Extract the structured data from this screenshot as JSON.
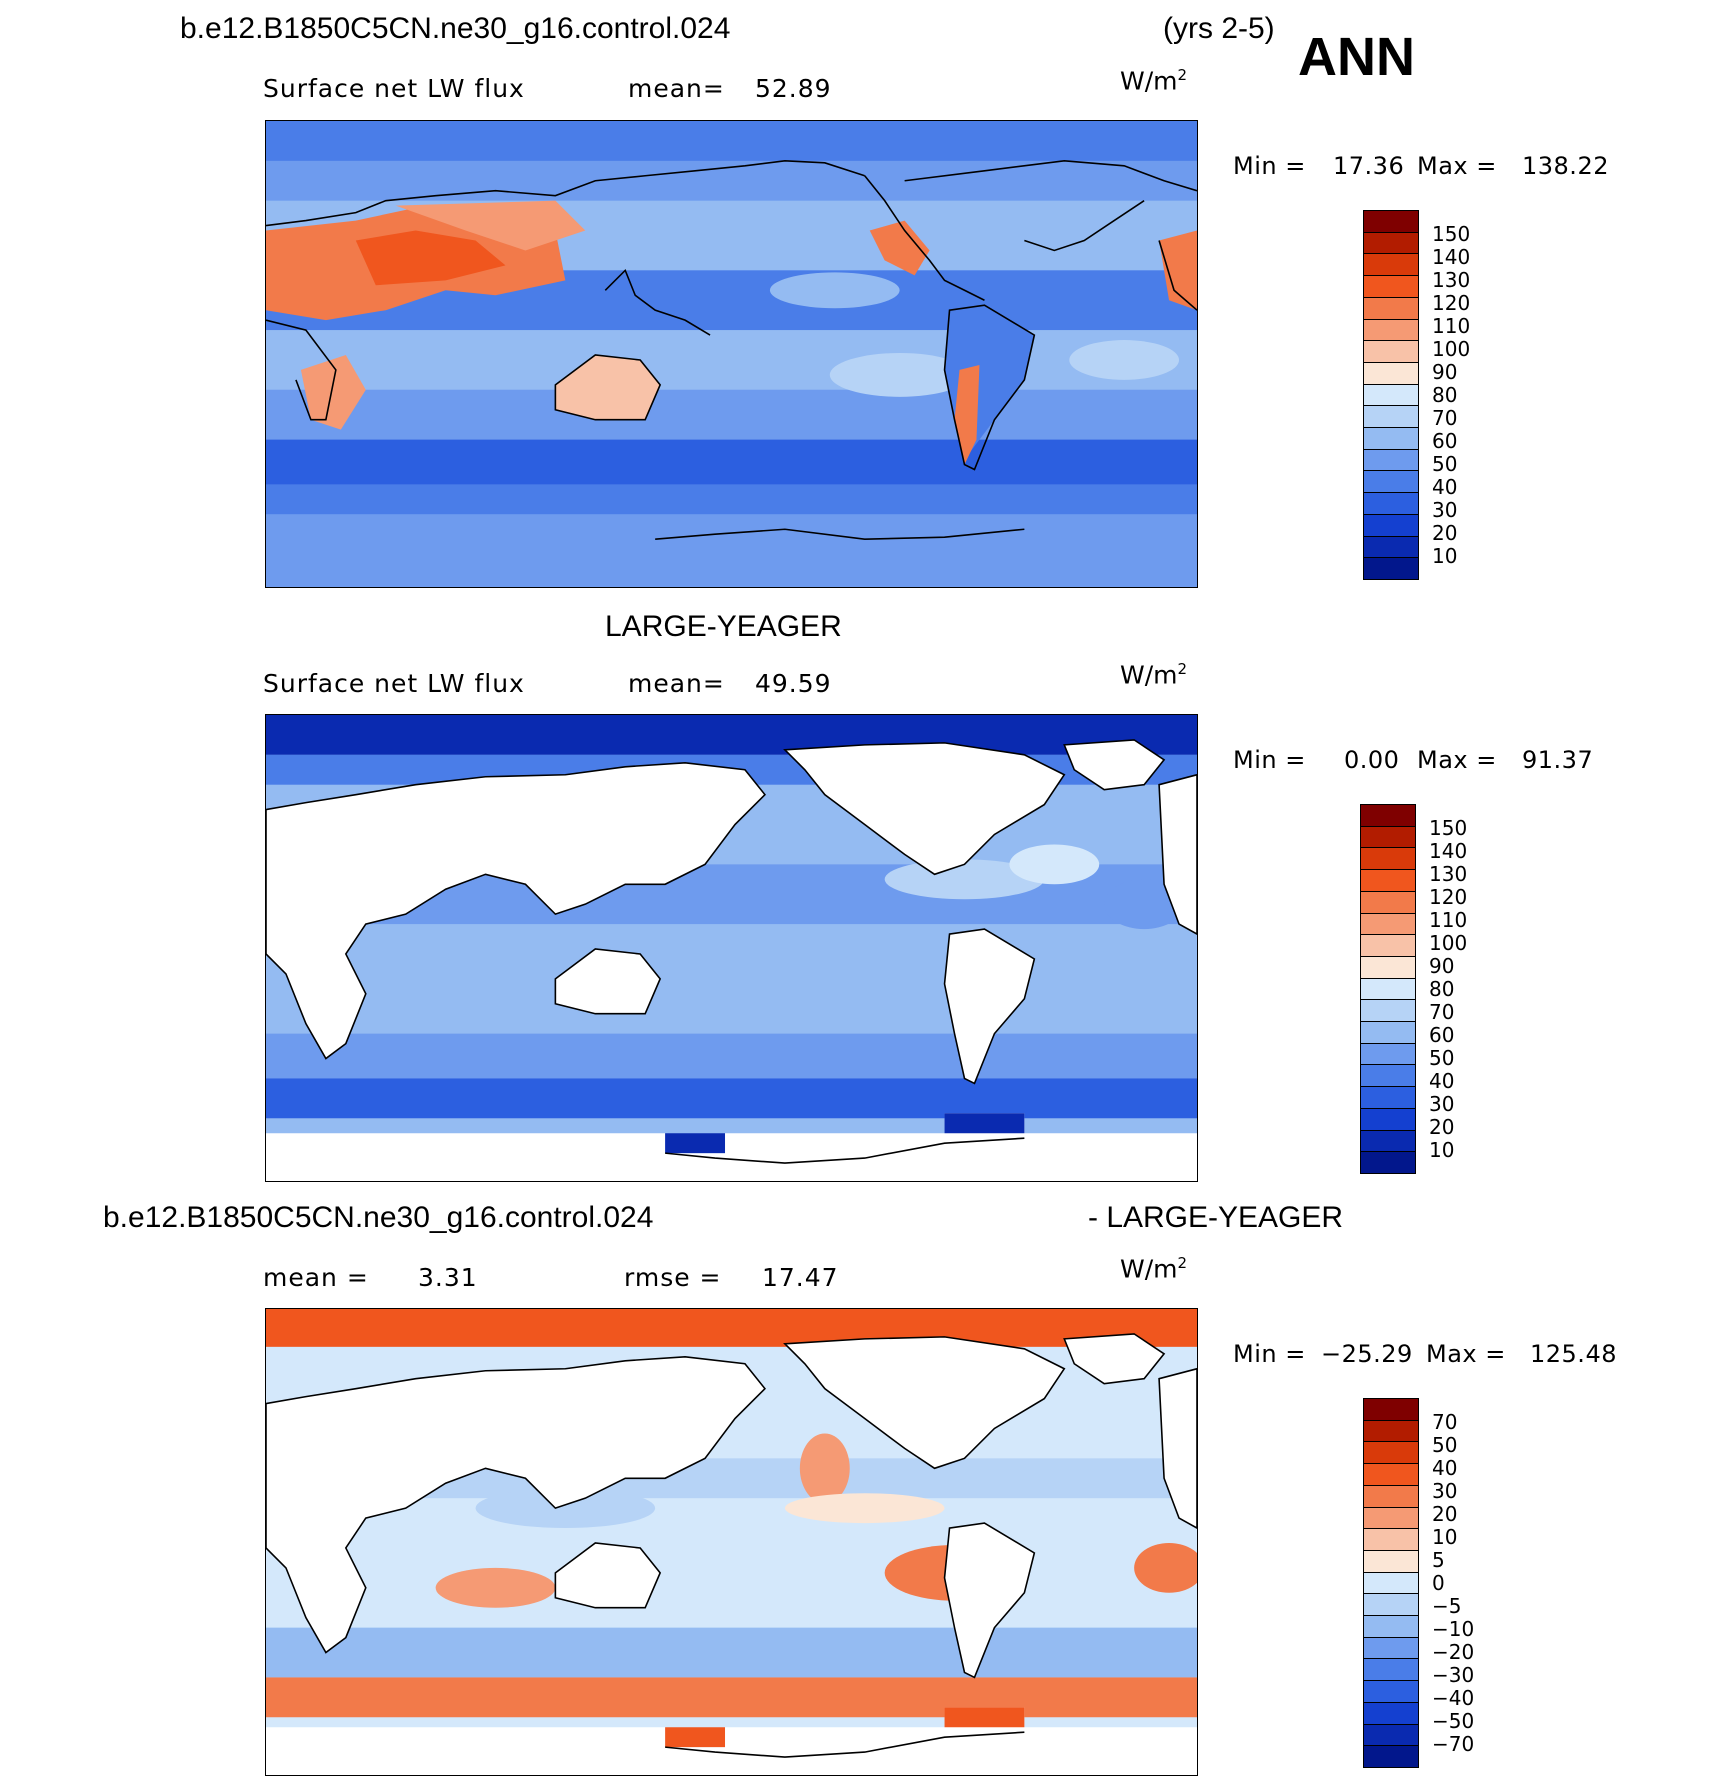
{
  "header": {
    "case_title": "b.e12.B1850C5CN.ne30_g16.control.024",
    "years": "(yrs 2-5)",
    "season": "ANN"
  },
  "panels": [
    {
      "id": "case",
      "variable": "Surface net LW flux",
      "stat_label": "mean=",
      "stat_value": "52.89",
      "units": "W/m",
      "units_exp": "2",
      "min_label": "Min  =",
      "min_value": "17.36",
      "max_label": "Max  =",
      "max_value": "138.22",
      "colorbar": {
        "labels": [
          "150",
          "140",
          "130",
          "120",
          "110",
          "100",
          "90",
          "80",
          "70",
          "60",
          "50",
          "40",
          "30",
          "20",
          "10"
        ],
        "colors": [
          "#7f0000",
          "#b21c00",
          "#d93a0a",
          "#f0561e",
          "#f27a4a",
          "#f59a74",
          "#f8c2a8",
          "#fbe6d6",
          "#d4e8fb",
          "#b6d3f6",
          "#94bbf2",
          "#6e9bee",
          "#4a7de8",
          "#2c5fe0",
          "#1440d0",
          "#0a2ab0",
          "#02178c"
        ]
      }
    },
    {
      "id": "obs",
      "title": "LARGE-YEAGER",
      "variable": "Surface net LW flux",
      "stat_label": "mean=",
      "stat_value": "49.59",
      "units": "W/m",
      "units_exp": "2",
      "min_label": "Min  =",
      "min_value": "0.00",
      "max_label": "Max  =",
      "max_value": "91.37",
      "colorbar": {
        "labels": [
          "150",
          "140",
          "130",
          "120",
          "110",
          "100",
          "90",
          "80",
          "70",
          "60",
          "50",
          "40",
          "30",
          "20",
          "10"
        ],
        "colors": [
          "#7f0000",
          "#b21c00",
          "#d93a0a",
          "#f0561e",
          "#f27a4a",
          "#f59a74",
          "#f8c2a8",
          "#fbe6d6",
          "#d4e8fb",
          "#b6d3f6",
          "#94bbf2",
          "#6e9bee",
          "#4a7de8",
          "#2c5fe0",
          "#1440d0",
          "#0a2ab0",
          "#02178c"
        ]
      }
    },
    {
      "id": "diff",
      "title_left": "b.e12.B1850C5CN.ne30_g16.control.024",
      "title_right": "- LARGE-YEAGER",
      "stat_label": "mean  =",
      "stat_value": "3.31",
      "stat2_label": "rmse  =",
      "stat2_value": "17.47",
      "units": "W/m",
      "units_exp": "2",
      "min_label": "Min  =",
      "min_value": "−25.29",
      "max_label": "Max  =",
      "max_value": "125.48",
      "colorbar": {
        "labels": [
          "70",
          "50",
          "40",
          "30",
          "20",
          "10",
          "5",
          "0",
          "−5",
          "−10",
          "−20",
          "−30",
          "−40",
          "−50",
          "−70"
        ],
        "colors": [
          "#7f0000",
          "#b21c00",
          "#d93a0a",
          "#f0561e",
          "#f27a4a",
          "#f59a74",
          "#f8c2a8",
          "#fbe6d6",
          "#d4e8fb",
          "#b6d3f6",
          "#94bbf2",
          "#6e9bee",
          "#4a7de8",
          "#2c5fe0",
          "#1440d0",
          "#0a2ab0",
          "#02178c"
        ]
      }
    }
  ],
  "colors": {
    "ocean_case": "#6e9bee",
    "ocean_obs": "#94bbf2",
    "ocean_diff": "#d4e8fb",
    "land_obs": "#ffffff",
    "polar_warm": "#f0561e"
  }
}
